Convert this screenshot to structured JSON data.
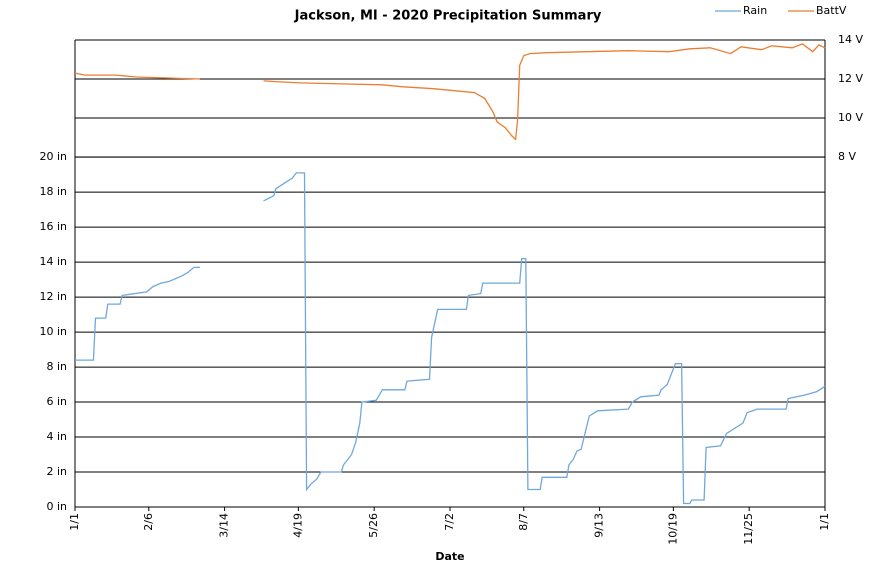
{
  "chart_data": {
    "type": "line",
    "title": "Jackson, MI - 2020 Precipitation Summary",
    "x_label": "Date",
    "xlim": [
      0,
      366
    ],
    "xticks": [
      {
        "value": 0,
        "label": "1/1"
      },
      {
        "value": 36,
        "label": "2/6"
      },
      {
        "value": 73,
        "label": "3/14"
      },
      {
        "value": 109,
        "label": "4/19"
      },
      {
        "value": 146,
        "label": "5/26"
      },
      {
        "value": 183,
        "label": "7/2"
      },
      {
        "value": 219,
        "label": "8/7"
      },
      {
        "value": 256,
        "label": "9/13"
      },
      {
        "value": 292,
        "label": "10/19"
      },
      {
        "value": 329,
        "label": "11/25"
      },
      {
        "value": 366,
        "label": "1/1"
      }
    ],
    "ylim": [
      0,
      26.7
    ],
    "yticks": [
      {
        "value": 0,
        "label": "0 in"
      },
      {
        "value": 2,
        "label": "2 in"
      },
      {
        "value": 4,
        "label": "4 in"
      },
      {
        "value": 6,
        "label": "6 in"
      },
      {
        "value": 8,
        "label": "8 in"
      },
      {
        "value": 10,
        "label": "10 in"
      },
      {
        "value": 12,
        "label": "12 in"
      },
      {
        "value": 14,
        "label": "14 in"
      },
      {
        "value": 16,
        "label": "16 in"
      },
      {
        "value": 18,
        "label": "18 in"
      },
      {
        "value": 20,
        "label": "20 in"
      }
    ],
    "y2lim": [
      -9.95,
      14
    ],
    "y2ticks": [
      {
        "value": 8,
        "label": "8 V"
      },
      {
        "value": 10,
        "label": "10 V"
      },
      {
        "value": 12,
        "label": "12 V"
      },
      {
        "value": 14,
        "label": "14 V"
      }
    ],
    "grid": true,
    "legend": "top-right",
    "series": [
      {
        "name": "Rain",
        "color": "#6fa8dc",
        "x": [
          0,
          9,
          10,
          15,
          16,
          22,
          23,
          35,
          38,
          42,
          46,
          52,
          55,
          58,
          61,
          62,
          92,
          97,
          98,
          102,
          106,
          108,
          112,
          113,
          115,
          118,
          120,
          130,
          131,
          135,
          137,
          139,
          140,
          147,
          150,
          161,
          162,
          173,
          174,
          177,
          191,
          192,
          198,
          199,
          217,
          218,
          220,
          221,
          227,
          228,
          240,
          241,
          243,
          245,
          247,
          251,
          255,
          270,
          272,
          276,
          285,
          286,
          289,
          291,
          293,
          296,
          297,
          300,
          301,
          307,
          308,
          315,
          318,
          326,
          328,
          333,
          347,
          348,
          356,
          362,
          366
        ],
        "values": [
          8.4,
          8.4,
          10.8,
          10.8,
          11.6,
          11.6,
          12.1,
          12.3,
          12.6,
          12.8,
          12.9,
          13.2,
          13.4,
          13.7,
          13.7,
          null,
          17.5,
          17.8,
          18.2,
          18.5,
          18.8,
          19.1,
          19.1,
          1.0,
          1.3,
          1.6,
          2.0,
          2.0,
          2.4,
          3.0,
          3.7,
          4.8,
          6.0,
          6.1,
          6.7,
          6.7,
          7.2,
          7.3,
          9.7,
          11.3,
          11.3,
          12.1,
          12.2,
          12.8,
          12.8,
          14.2,
          14.2,
          1.0,
          1.0,
          1.7,
          1.7,
          2.4,
          2.7,
          3.2,
          3.3,
          5.2,
          5.5,
          5.6,
          6.0,
          6.3,
          6.4,
          6.7,
          7.0,
          7.6,
          8.2,
          8.2,
          0.2,
          0.2,
          0.4,
          0.4,
          3.4,
          3.5,
          4.2,
          4.8,
          5.4,
          5.6,
          5.6,
          6.2,
          6.4,
          6.6,
          6.9
        ]
      },
      {
        "name": "BattV",
        "color": "#ed7d31",
        "axis": "y2",
        "x": [
          0,
          5,
          20,
          30,
          45,
          61,
          62,
          92,
          100,
          110,
          130,
          150,
          160,
          175,
          185,
          195,
          200,
          204,
          206,
          210,
          213,
          215,
          216,
          217,
          219,
          222,
          230,
          250,
          270,
          290,
          300,
          310,
          320,
          325,
          335,
          340,
          350,
          355,
          360,
          363,
          366
        ],
        "values": [
          12.3,
          12.2,
          12.2,
          12.1,
          12.05,
          12.0,
          null,
          11.9,
          11.85,
          11.8,
          11.75,
          11.7,
          11.6,
          11.5,
          11.4,
          11.3,
          11.0,
          10.3,
          9.8,
          9.5,
          9.1,
          8.9,
          9.9,
          12.7,
          13.2,
          13.3,
          13.35,
          13.4,
          13.45,
          13.4,
          13.55,
          13.6,
          13.3,
          13.65,
          13.5,
          13.7,
          13.6,
          13.8,
          13.4,
          13.75,
          13.6
        ]
      }
    ]
  }
}
